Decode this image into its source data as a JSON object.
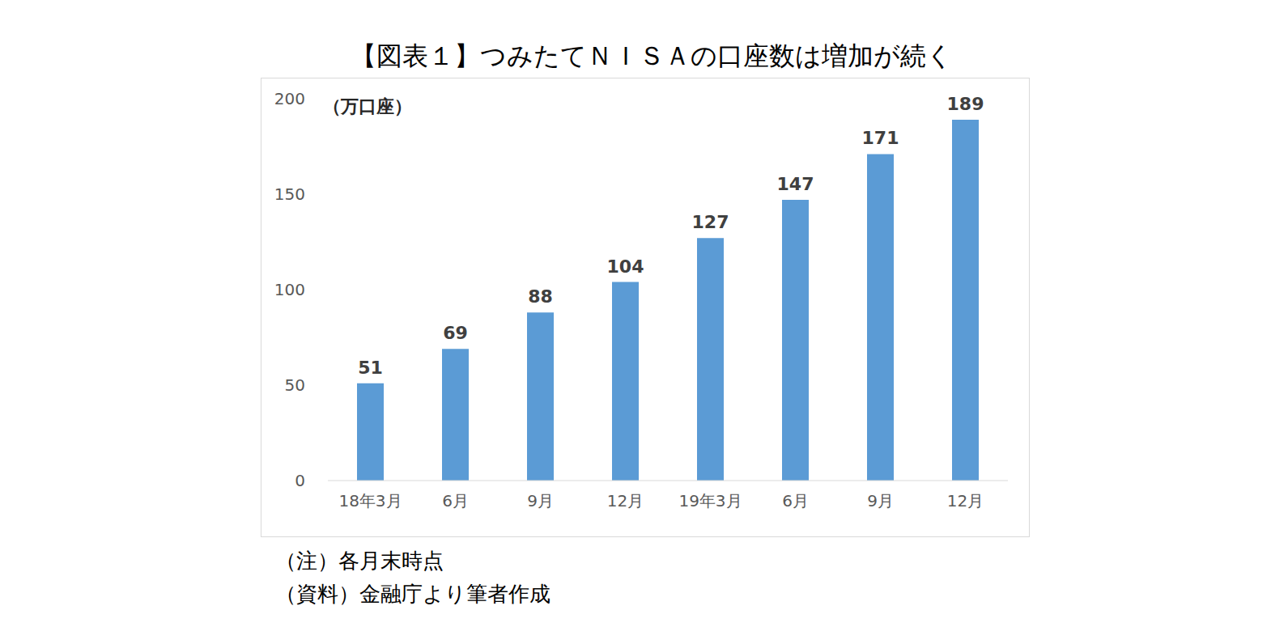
{
  "chart_data": {
    "type": "bar",
    "title": "【図表１】つみたてＮＩＳＡの口座数は増加が続く",
    "y_label": "（万口座）",
    "categories": [
      "18年3月",
      "6月",
      "9月",
      "12月",
      "19年3月",
      "6月",
      "9月",
      "12月"
    ],
    "values": [
      51,
      69,
      88,
      104,
      127,
      147,
      171,
      189
    ],
    "color": "#5b9bd5",
    "ylim": [
      0,
      200
    ],
    "yticks": [
      0,
      50,
      100,
      150,
      200
    ],
    "grid": false,
    "data_labels": true,
    "notes": [
      "（注）各月末時点",
      "（資料）金融庁より筆者作成"
    ]
  }
}
